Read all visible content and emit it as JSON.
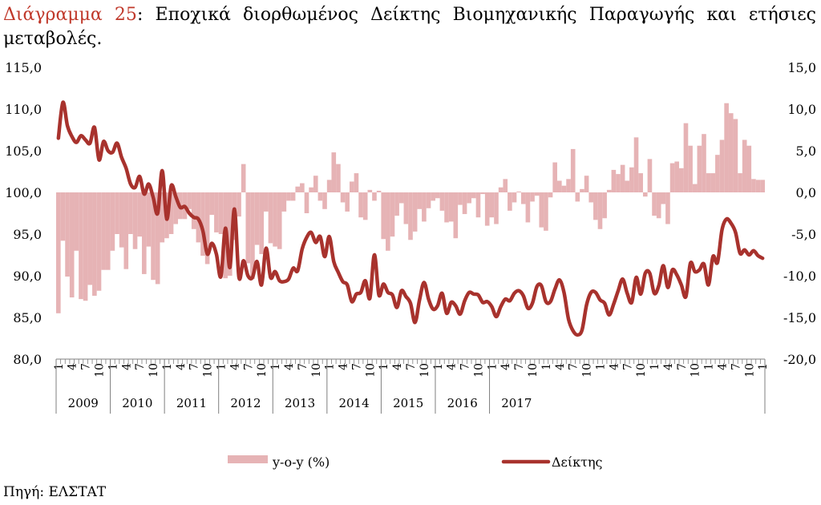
{
  "title": {
    "label": "Διάγραμμα 25",
    "separator": ":",
    "text": "Εποχικά διορθωμένος Δείκτης Βιομηχανικής Παραγωγής και ετήσιες μεταβολές."
  },
  "source": "Πηγή: ΕΛΣΤΑΤ",
  "colors": {
    "bar": "#e6b3b5",
    "line": "#a8322d",
    "axis": "#7f7f7f",
    "title_label": "#c0392b"
  },
  "chart_data": {
    "type": "bar+line",
    "title": "Εποχικά διορθωμένος Δείκτης Βιομηχανικής Παραγωγής και ετήσιες μεταβολές.",
    "start": {
      "year": 2009,
      "month": 1
    },
    "years": [
      "2009",
      "2010",
      "2011",
      "2012",
      "2013",
      "2014",
      "2015",
      "2016",
      "2017"
    ],
    "month_tick_labels": [
      "1",
      "4",
      "7",
      "10"
    ],
    "left_axis": {
      "min": 80,
      "max": 115,
      "step": 5,
      "ticks": [
        "80,0",
        "85,0",
        "90,0",
        "95,0",
        "100,0",
        "105,0",
        "110,0",
        "115,0"
      ]
    },
    "right_axis": {
      "min": -20,
      "max": 15,
      "step": 5,
      "ticks": [
        "-20,0",
        "-15,0",
        "-10,0",
        "-5,0",
        "0,0",
        "5,0",
        "10,0",
        "15,0"
      ]
    },
    "legend": {
      "position": "bottom",
      "bar_label": "y-o-y (%)",
      "line_label": "Δείκτης"
    },
    "series": [
      {
        "name": "y-o-y (%)",
        "axis": "right",
        "type": "bar",
        "values": [
          -14.5,
          -5.8,
          -10.1,
          -12.6,
          -7.0,
          -12.8,
          -13.0,
          -11.1,
          -12.4,
          -11.8,
          -9.3,
          -9.3,
          -7.0,
          -5.0,
          -6.6,
          -9.2,
          -5.0,
          -6.8,
          -5.3,
          -9.8,
          -6.5,
          -10.5,
          -11.0,
          -6.0,
          -5.5,
          -5.0,
          -3.8,
          -3.2,
          -3.2,
          -2.0,
          -4.4,
          -6.0,
          -7.6,
          -8.6,
          -2.7,
          -4.8,
          -5.0,
          -10.3,
          -10.0,
          -5.7,
          -2.9,
          3.4,
          -8.5,
          -10.4,
          -6.3,
          -7.4,
          -2.3,
          -6.1,
          -6.5,
          -6.8,
          -2.3,
          -1.0,
          -1.0,
          0.7,
          1.1,
          -2.5,
          0.6,
          2.0,
          -1.0,
          -2.0,
          1.5,
          4.8,
          3.4,
          -1.2,
          -2.3,
          1.3,
          2.3,
          -3.0,
          -3.3,
          0.3,
          -1.0,
          0.2,
          -5.6,
          -7.0,
          -5.3,
          -2.8,
          -1.3,
          -3.8,
          -5.7,
          -4.7,
          -2.0,
          -3.5,
          -1.9,
          -1.0,
          -0.7,
          -2.2,
          -3.6,
          -3.5,
          -5.5,
          -1.5,
          -2.6,
          -1.3,
          -0.7,
          -3.0,
          -0.2,
          -4.0,
          -3.0,
          -3.8,
          0.6,
          1.6,
          -2.2,
          -1.2,
          0.1,
          -1.4,
          -3.6,
          -1.1,
          -0.4,
          -4.2,
          -4.6,
          -0.6,
          3.6,
          1.4,
          0.8,
          1.6,
          5.2,
          -1.1,
          0.4,
          2.0,
          -1.2,
          -3.3,
          -4.4,
          -3.1,
          0.3,
          2.7,
          2.2,
          3.3,
          1.4,
          3.0,
          6.6,
          2.3,
          -0.5,
          4.0,
          -2.8,
          -3.1,
          -1.4,
          -3.8,
          3.5,
          3.7,
          2.9,
          8.3,
          5.6,
          1.0,
          5.6,
          7.0,
          2.3,
          2.3,
          4.5,
          6.3,
          10.7,
          9.5,
          8.8,
          2.3,
          6.3,
          5.6,
          1.6,
          1.5,
          1.5
        ]
      },
      {
        "name": "Δείκτης",
        "axis": "left",
        "type": "line",
        "values": [
          106.5,
          110.8,
          108.0,
          106.7,
          106.0,
          106.8,
          106.3,
          105.9,
          107.8,
          103.9,
          106.1,
          105.0,
          104.8,
          105.9,
          104.2,
          102.9,
          101.0,
          100.6,
          101.9,
          99.8,
          101.0,
          99.4,
          97.5,
          102.6,
          96.8,
          100.8,
          99.5,
          98.2,
          98.3,
          97.5,
          97.0,
          96.8,
          95.4,
          92.6,
          93.9,
          92.6,
          89.9,
          95.7,
          91.0,
          98.0,
          89.8,
          91.8,
          90.0,
          89.8,
          91.7,
          88.9,
          93.3,
          89.8,
          90.5,
          89.4,
          89.3,
          89.6,
          90.9,
          90.6,
          93.2,
          94.6,
          95.2,
          94.0,
          94.7,
          92.3,
          94.7,
          91.7,
          90.4,
          89.3,
          88.9,
          86.9,
          87.8,
          88.0,
          89.4,
          87.3,
          92.5,
          87.7,
          89.0,
          88.0,
          87.7,
          86.2,
          88.2,
          87.5,
          86.7,
          84.4,
          87.1,
          89.2,
          87.2,
          86.0,
          86.4,
          87.9,
          85.5,
          86.8,
          86.4,
          85.4,
          87.0,
          88.0,
          87.8,
          87.7,
          86.8,
          86.9,
          86.3,
          85.1,
          86.3,
          87.2,
          87.0,
          87.9,
          88.2,
          87.6,
          86.1,
          86.7,
          88.7,
          88.8,
          86.9,
          86.9,
          88.4,
          89.5,
          88.0,
          84.8,
          83.4,
          82.9,
          83.5,
          86.5,
          88.0,
          88.0,
          87.1,
          86.7,
          85.3,
          86.6,
          88.2,
          89.6,
          87.9,
          86.8,
          89.8,
          87.8,
          90.3,
          90.3,
          87.9,
          88.8,
          91.2,
          88.6,
          90.7,
          90.1,
          88.9,
          87.5,
          91.5,
          90.5,
          90.7,
          91.4,
          88.9,
          92.3,
          91.6,
          95.5,
          96.8,
          96.3,
          95.2,
          92.7,
          93.1,
          92.5,
          93.0,
          92.4,
          92.1
        ]
      }
    ]
  }
}
